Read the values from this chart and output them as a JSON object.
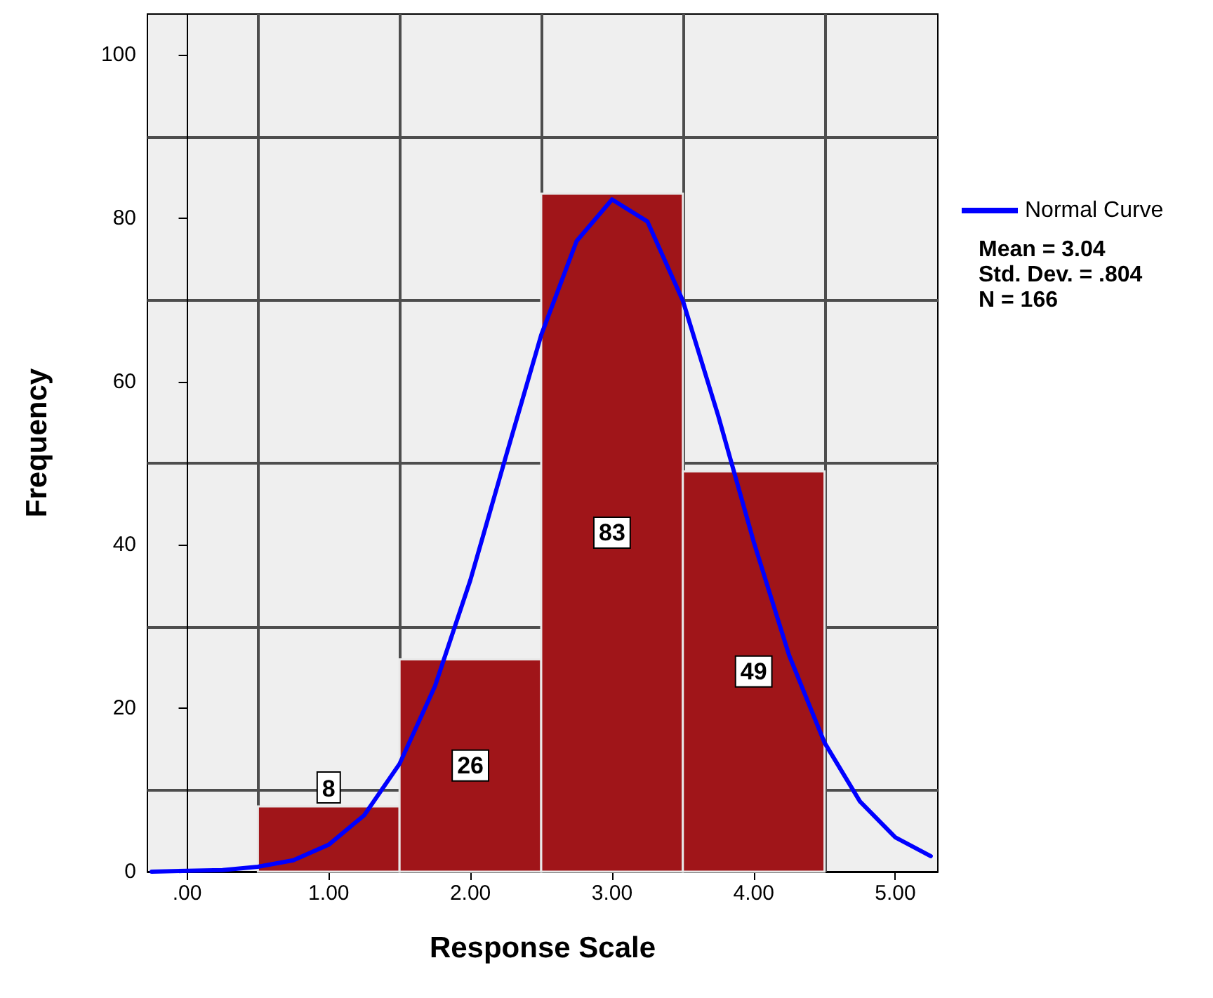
{
  "chart_data": {
    "type": "histogram",
    "xlabel": "Response Scale",
    "ylabel": "Frequency",
    "bins": [
      0.5,
      1.5,
      2.5,
      3.5,
      4.5
    ],
    "values": [
      8,
      26,
      83,
      49
    ],
    "color": "#a01519",
    "value_labels": [
      "8",
      "26",
      "83",
      "49"
    ],
    "series": [
      {
        "type": "line",
        "name": "Normal Curve",
        "color": "#0000ff",
        "x": [
          -0.25,
          0,
          0.25,
          0.5,
          0.75,
          1,
          1.25,
          1.5,
          1.75,
          2,
          2.25,
          2.5,
          2.75,
          3,
          3.25,
          3.5,
          3.75,
          4,
          4.25,
          4.5,
          4.75,
          5,
          5.25
        ],
        "values": [
          0,
          0.1,
          0.2,
          0.6,
          1.4,
          3.3,
          6.9,
          13.2,
          22.7,
          35.7,
          50.8,
          65.7,
          77.2,
          82.3,
          79.6,
          69.9,
          55.8,
          40.4,
          26.5,
          15.8,
          8.6,
          4.2,
          1.9
        ]
      }
    ],
    "annotations": [
      "Mean = 3.04",
      "Std. Dev. = .804",
      "N = 166"
    ],
    "xlim": [
      -0.28,
      5.3
    ],
    "xticks": [
      {
        "value": 0,
        "label": ".00"
      },
      {
        "value": 1,
        "label": "1.00"
      },
      {
        "value": 2,
        "label": "2.00"
      },
      {
        "value": 3,
        "label": "3.00"
      },
      {
        "value": 4,
        "label": "4.00"
      },
      {
        "value": 5,
        "label": "5.00"
      }
    ],
    "ylim": [
      0,
      105
    ],
    "yticks": [
      0,
      20,
      40,
      60,
      80,
      100
    ],
    "grid": true,
    "legend": "right",
    "marker": "none",
    "line_style": "solid"
  }
}
